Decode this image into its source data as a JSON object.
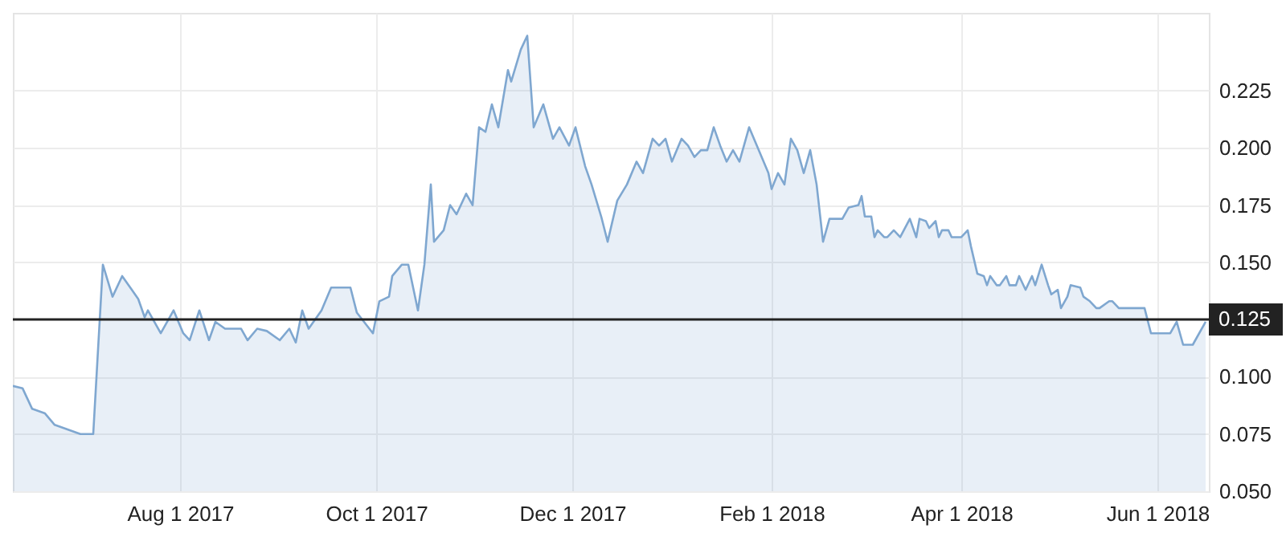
{
  "chart_data": {
    "type": "area",
    "x": [
      "2017-06-10",
      "2017-06-13",
      "2017-06-16",
      "2017-06-20",
      "2017-06-23",
      "2017-06-27",
      "2017-07-01",
      "2017-07-05",
      "2017-07-08",
      "2017-07-11",
      "2017-07-14",
      "2017-07-17",
      "2017-07-19",
      "2017-07-21",
      "2017-07-22",
      "2017-07-26",
      "2017-07-30",
      "2017-08-02",
      "2017-08-04",
      "2017-08-07",
      "2017-08-10",
      "2017-08-12",
      "2017-08-15",
      "2017-08-20",
      "2017-08-22",
      "2017-08-25",
      "2017-08-28",
      "2017-09-01",
      "2017-09-04",
      "2017-09-06",
      "2017-09-08",
      "2017-09-10",
      "2017-09-14",
      "2017-09-17",
      "2017-09-23",
      "2017-09-25",
      "2017-09-30",
      "2017-10-02",
      "2017-10-05",
      "2017-10-06",
      "2017-10-09",
      "2017-10-11",
      "2017-10-14",
      "2017-10-16",
      "2017-10-18",
      "2017-10-19",
      "2017-10-22",
      "2017-10-24",
      "2017-10-26",
      "2017-10-29",
      "2017-10-31",
      "2017-11-02",
      "2017-11-04",
      "2017-11-06",
      "2017-11-08",
      "2017-11-11",
      "2017-11-12",
      "2017-11-15",
      "2017-11-17",
      "2017-11-19",
      "2017-11-22",
      "2017-11-25",
      "2017-11-27",
      "2017-11-30",
      "2017-12-02",
      "2017-12-05",
      "2017-12-07",
      "2017-12-10",
      "2017-12-12",
      "2017-12-15",
      "2017-12-18",
      "2017-12-21",
      "2017-12-23",
      "2017-12-26",
      "2017-12-28",
      "2017-12-30",
      "2018-01-01",
      "2018-01-04",
      "2018-01-06",
      "2018-01-08",
      "2018-01-10",
      "2018-01-12",
      "2018-01-14",
      "2018-01-16",
      "2018-01-18",
      "2018-01-20",
      "2018-01-22",
      "2018-01-25",
      "2018-01-28",
      "2018-01-31",
      "2018-02-01",
      "2018-02-03",
      "2018-02-05",
      "2018-02-07",
      "2018-02-09",
      "2018-02-11",
      "2018-02-13",
      "2018-02-15",
      "2018-02-17",
      "2018-02-19",
      "2018-02-23",
      "2018-02-25",
      "2018-02-28",
      "2018-03-01",
      "2018-03-02",
      "2018-03-04",
      "2018-03-05",
      "2018-03-06",
      "2018-03-08",
      "2018-03-09",
      "2018-03-11",
      "2018-03-13",
      "2018-03-16",
      "2018-03-18",
      "2018-03-19",
      "2018-03-21",
      "2018-03-22",
      "2018-03-24",
      "2018-03-25",
      "2018-03-26",
      "2018-03-28",
      "2018-03-29",
      "2018-04-01",
      "2018-04-03",
      "2018-04-04",
      "2018-04-06",
      "2018-04-08",
      "2018-04-09",
      "2018-04-10",
      "2018-04-12",
      "2018-04-13",
      "2018-04-15",
      "2018-04-16",
      "2018-04-18",
      "2018-04-19",
      "2018-04-21",
      "2018-04-23",
      "2018-04-24",
      "2018-04-26",
      "2018-04-28",
      "2018-04-29",
      "2018-05-01",
      "2018-05-02",
      "2018-05-04",
      "2018-05-05",
      "2018-05-08",
      "2018-05-09",
      "2018-05-11",
      "2018-05-13",
      "2018-05-14",
      "2018-05-17",
      "2018-05-18",
      "2018-05-20",
      "2018-05-28",
      "2018-05-30",
      "2018-06-05",
      "2018-06-07",
      "2018-06-09",
      "2018-06-12",
      "2018-06-16"
    ],
    "series": [
      {
        "color": "#7fa7d0",
        "values": [
          0.096,
          0.095,
          0.086,
          0.084,
          0.079,
          0.077,
          0.075,
          0.075,
          0.149,
          0.135,
          0.144,
          0.138,
          0.134,
          0.126,
          0.129,
          0.119,
          0.129,
          0.119,
          0.116,
          0.129,
          0.116,
          0.124,
          0.121,
          0.121,
          0.116,
          0.121,
          0.12,
          0.116,
          0.121,
          0.115,
          0.129,
          0.121,
          0.129,
          0.139,
          0.139,
          0.128,
          0.119,
          0.133,
          0.135,
          0.144,
          0.149,
          0.149,
          0.129,
          0.149,
          0.184,
          0.159,
          0.164,
          0.175,
          0.171,
          0.18,
          0.175,
          0.209,
          0.207,
          0.219,
          0.209,
          0.234,
          0.229,
          0.243,
          0.249,
          0.209,
          0.219,
          0.204,
          0.209,
          0.201,
          0.209,
          0.192,
          0.184,
          0.17,
          0.159,
          0.177,
          0.184,
          0.194,
          0.189,
          0.204,
          0.201,
          0.204,
          0.194,
          0.204,
          0.201,
          0.196,
          0.199,
          0.199,
          0.209,
          0.201,
          0.194,
          0.199,
          0.194,
          0.209,
          0.199,
          0.189,
          0.182,
          0.189,
          0.184,
          0.204,
          0.199,
          0.189,
          0.199,
          0.184,
          0.159,
          0.169,
          0.169,
          0.174,
          0.175,
          0.179,
          0.17,
          0.17,
          0.161,
          0.164,
          0.161,
          0.161,
          0.164,
          0.161,
          0.169,
          0.161,
          0.169,
          0.168,
          0.165,
          0.168,
          0.161,
          0.164,
          0.164,
          0.161,
          0.161,
          0.164,
          0.157,
          0.145,
          0.144,
          0.14,
          0.144,
          0.14,
          0.14,
          0.144,
          0.14,
          0.14,
          0.144,
          0.138,
          0.144,
          0.14,
          0.149,
          0.14,
          0.136,
          0.138,
          0.13,
          0.135,
          0.14,
          0.139,
          0.135,
          0.133,
          0.13,
          0.13,
          0.133,
          0.133,
          0.13,
          0.13,
          0.119,
          0.119,
          0.124,
          0.114,
          0.114,
          0.124
        ]
      }
    ],
    "xlim": [
      "2017-06-10",
      "2018-06-17"
    ],
    "xticks": [
      {
        "value": "2017-08-01",
        "label": "Aug 1 2017"
      },
      {
        "value": "2017-10-01",
        "label": "Oct 1 2017"
      },
      {
        "value": "2017-12-01",
        "label": "Dec 1 2017"
      },
      {
        "value": "2018-02-01",
        "label": "Feb 1 2018"
      },
      {
        "value": "2018-04-01",
        "label": "Apr 1 2018"
      },
      {
        "value": "2018-06-01",
        "label": "Jun 1 2018"
      }
    ],
    "ylim": [
      0.05,
      0.259
    ],
    "yticks": [
      {
        "value": 0.05,
        "label": "0.050"
      },
      {
        "value": 0.075,
        "label": "0.075"
      },
      {
        "value": 0.1,
        "label": "0.100"
      },
      {
        "value": 0.15,
        "label": "0.150"
      },
      {
        "value": 0.175,
        "label": "0.175"
      },
      {
        "value": 0.2,
        "label": "0.200"
      },
      {
        "value": 0.225,
        "label": "0.225"
      }
    ],
    "ref_lines": [
      {
        "axis": "y",
        "value": 0.125,
        "label": "0.125",
        "color": "#222222"
      }
    ],
    "grid": true
  }
}
